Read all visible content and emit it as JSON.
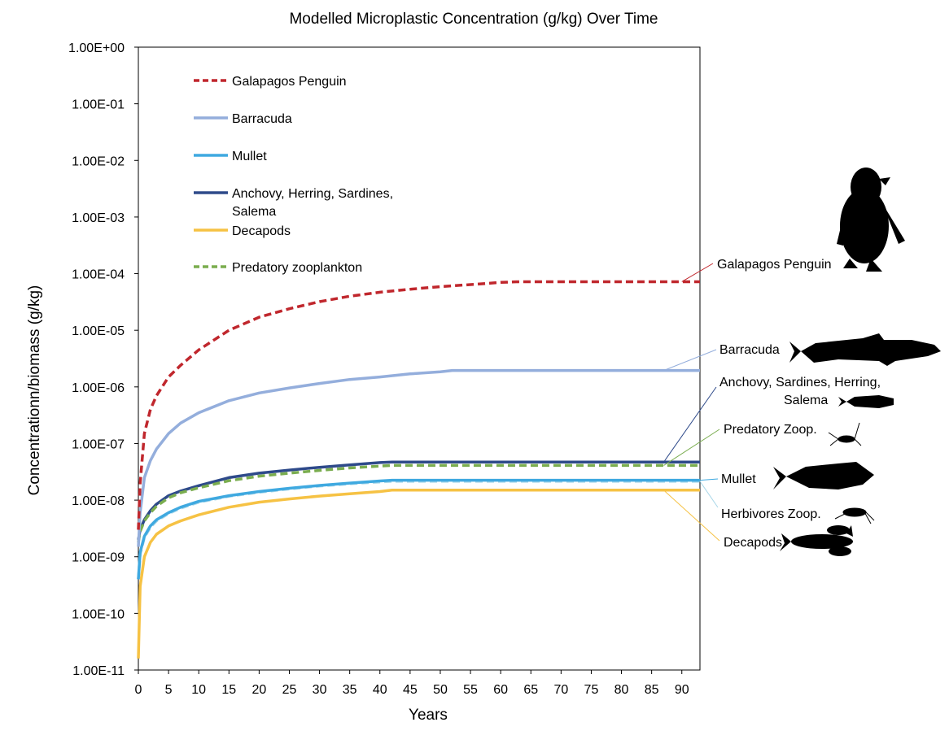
{
  "chart_data": {
    "type": "line",
    "title": "Modelled Microplastic Concentration (g/kg) Over Time",
    "xlabel": "Years",
    "ylabel": "Concentrationn/biomass (g/kg)",
    "y_scale": "log",
    "xlim": [
      0,
      93
    ],
    "ylim": [
      1e-11,
      1
    ],
    "x_ticks": [
      0,
      5,
      10,
      15,
      20,
      25,
      30,
      35,
      40,
      45,
      50,
      55,
      60,
      65,
      70,
      75,
      80,
      85,
      90
    ],
    "y_ticks": [
      {
        "value": 1,
        "label": "1.00E+00"
      },
      {
        "value": 0.1,
        "label": "1.00E-01"
      },
      {
        "value": 0.01,
        "label": "1.00E-02"
      },
      {
        "value": 0.001,
        "label": "1.00E-03"
      },
      {
        "value": 0.0001,
        "label": "1.00E-04"
      },
      {
        "value": 1e-05,
        "label": "1.00E-05"
      },
      {
        "value": 1e-06,
        "label": "1.00E-06"
      },
      {
        "value": 1e-07,
        "label": "1.00E-07"
      },
      {
        "value": 1e-08,
        "label": "1.00E-08"
      },
      {
        "value": 1e-09,
        "label": "1.00E-09"
      },
      {
        "value": 1e-10,
        "label": "1.00E-10"
      },
      {
        "value": 1e-11,
        "label": "1.00E-11"
      }
    ],
    "grid": false,
    "legend_position": "top-left inside plot",
    "series": [
      {
        "name": "Galapagos Penguin",
        "color": "#c0272d",
        "dash": "dashed",
        "x": [
          0,
          0.3,
          1,
          2,
          3,
          5,
          7,
          10,
          15,
          20,
          25,
          30,
          35,
          40,
          45,
          50,
          55,
          60,
          63,
          70,
          80,
          93
        ],
        "y": [
          3e-09,
          2e-08,
          1.5e-07,
          4e-07,
          7e-07,
          1.5e-06,
          2.4e-06,
          4.5e-06,
          1e-05,
          1.7e-05,
          2.4e-05,
          3.2e-05,
          4e-05,
          4.7e-05,
          5.3e-05,
          5.9e-05,
          6.4e-05,
          7e-05,
          7.2e-05,
          7.2e-05,
          7.2e-05,
          7.2e-05
        ]
      },
      {
        "name": "Barracuda",
        "color": "#94aedc",
        "dash": "solid",
        "x": [
          0,
          0.3,
          1,
          2,
          3,
          5,
          7,
          10,
          15,
          20,
          25,
          30,
          35,
          40,
          45,
          50,
          52,
          60,
          70,
          80,
          93
        ],
        "y": [
          1.5e-09,
          6e-09,
          2.5e-08,
          5e-08,
          8e-08,
          1.5e-07,
          2.3e-07,
          3.5e-07,
          5.7e-07,
          7.8e-07,
          9.6e-07,
          1.15e-06,
          1.35e-06,
          1.5e-06,
          1.7e-06,
          1.85e-06,
          1.95e-06,
          1.95e-06,
          1.95e-06,
          1.95e-06,
          1.95e-06
        ]
      },
      {
        "name": "Mullet",
        "color": "#3fa9e0",
        "dash": "solid",
        "x": [
          0,
          0.3,
          1,
          2,
          3,
          5,
          7,
          10,
          15,
          20,
          25,
          30,
          35,
          40,
          42,
          50,
          60,
          70,
          80,
          93
        ],
        "y": [
          4e-10,
          1.2e-09,
          2.3e-09,
          3.5e-09,
          4.5e-09,
          6e-09,
          7.5e-09,
          9.5e-09,
          1.2e-08,
          1.42e-08,
          1.62e-08,
          1.82e-08,
          2e-08,
          2.18e-08,
          2.25e-08,
          2.25e-08,
          2.25e-08,
          2.25e-08,
          2.25e-08,
          2.25e-08
        ]
      },
      {
        "name": "Anchovy, Herring, Sardines, Salema",
        "color": "#2e4a8a",
        "dash": "solid",
        "x": [
          0,
          0.3,
          1,
          2,
          3,
          5,
          7,
          10,
          15,
          20,
          25,
          30,
          35,
          40,
          42,
          50,
          60,
          70,
          80,
          93
        ],
        "y": [
          2e-09,
          3e-09,
          4.5e-09,
          6.5e-09,
          8.5e-09,
          1.2e-08,
          1.45e-08,
          1.8e-08,
          2.5e-08,
          3e-08,
          3.4e-08,
          3.8e-08,
          4.2e-08,
          4.6e-08,
          4.7e-08,
          4.7e-08,
          4.7e-08,
          4.7e-08,
          4.7e-08,
          4.7e-08
        ]
      },
      {
        "name": "Decapods",
        "color": "#f6c244",
        "dash": "solid",
        "x": [
          0,
          0.3,
          1,
          2,
          3,
          5,
          7,
          10,
          15,
          20,
          25,
          30,
          35,
          40,
          42,
          50,
          60,
          70,
          80,
          93
        ],
        "y": [
          1.6e-11,
          3e-10,
          1e-09,
          1.8e-09,
          2.5e-09,
          3.5e-09,
          4.3e-09,
          5.5e-09,
          7.5e-09,
          9.2e-09,
          1.05e-08,
          1.18e-08,
          1.3e-08,
          1.42e-08,
          1.5e-08,
          1.5e-08,
          1.5e-08,
          1.5e-08,
          1.5e-08,
          1.5e-08
        ]
      },
      {
        "name": "Predatory zooplankton",
        "color": "#7aad4f",
        "dash": "dashed",
        "x": [
          0,
          0.3,
          1,
          2,
          3,
          5,
          7,
          10,
          15,
          20,
          25,
          30,
          35,
          40,
          42,
          50,
          60,
          70,
          80,
          93
        ],
        "y": [
          1.8e-09,
          2.8e-09,
          4.3e-09,
          6e-09,
          7.8e-09,
          1.1e-08,
          1.35e-08,
          1.65e-08,
          2.2e-08,
          2.65e-08,
          3e-08,
          3.35e-08,
          3.7e-08,
          4e-08,
          4.1e-08,
          4.1e-08,
          4.1e-08,
          4.1e-08,
          4.1e-08,
          4.1e-08
        ]
      },
      {
        "name": "Herbivores Zoop.",
        "color": "#a9d7e9",
        "dash": "dashed",
        "x": [
          0,
          0.3,
          1,
          2,
          3,
          5,
          7,
          10,
          15,
          20,
          25,
          30,
          35,
          40,
          42,
          50,
          60,
          70,
          80,
          93
        ],
        "y": [
          4e-10,
          1.1e-09,
          2.2e-09,
          3.3e-09,
          4.3e-09,
          5.8e-09,
          7.2e-09,
          9.2e-09,
          1.17e-08,
          1.38e-08,
          1.58e-08,
          1.77e-08,
          1.95e-08,
          2.1e-08,
          2.15e-08,
          2.15e-08,
          2.15e-08,
          2.15e-08,
          2.15e-08,
          2.15e-08
        ]
      }
    ],
    "legend": [
      {
        "label": "Galapagos Penguin",
        "color": "#c0272d",
        "dash": "dashed"
      },
      {
        "label": "Barracuda",
        "color": "#94aedc",
        "dash": "solid"
      },
      {
        "label": "Mullet",
        "color": "#3fa9e0",
        "dash": "solid"
      },
      {
        "label": "Anchovy, Herring, Sardines,",
        "label2": "Salema",
        "color": "#2e4a8a",
        "dash": "solid"
      },
      {
        "label": "Decapods",
        "color": "#f6c244",
        "dash": "solid"
      },
      {
        "label": "Predatory zooplankton",
        "color": "#7aad4f",
        "dash": "dashed"
      }
    ],
    "annotations": [
      {
        "label": "Galapagos Penguin",
        "anchor_x": 90,
        "anchor_y": 7.2e-05,
        "color": "#c0272d",
        "icon": "penguin-silhouette"
      },
      {
        "label": "Barracuda",
        "anchor_x": 87,
        "anchor_y": 1.95e-06,
        "color": "#94aedc",
        "icon": "barracuda-silhouette"
      },
      {
        "label": "Anchovy, Sardines, Herring,",
        "label2": "Salema",
        "anchor_x": 87,
        "anchor_y": 4.7e-08,
        "color": "#2e4a8a",
        "icon": "anchovy-silhouette"
      },
      {
        "label": "Predatory Zoop.",
        "anchor_x": 87,
        "anchor_y": 4.1e-08,
        "color": "#7aad4f",
        "icon": "predatory-zooplankton-silhouette"
      },
      {
        "label": "Mullet",
        "anchor_x": 93,
        "anchor_y": 2.25e-08,
        "color": "#3fa9e0",
        "icon": "mullet-silhouette"
      },
      {
        "label": "Herbivores Zoop.",
        "anchor_x": 93,
        "anchor_y": 2.15e-08,
        "color": "#a9d7e9",
        "icon": "herbivore-zooplankton-silhouette"
      },
      {
        "label": "Decapods",
        "anchor_x": 87,
        "anchor_y": 1.5e-08,
        "color": "#f6c244",
        "icon": "lobster-silhouette"
      }
    ]
  }
}
